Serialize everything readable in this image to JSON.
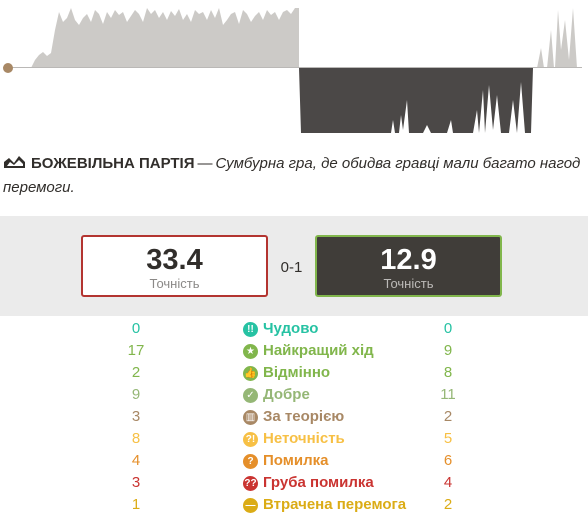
{
  "summary": {
    "icon": "graph-up-icon",
    "title": "БОЖЕВІЛЬНА ПАРТІЯ",
    "separator": "—",
    "description": "Сумбурна гра, де обидва гравці мали багато нагод перемоги."
  },
  "accuracy": {
    "white": {
      "value": "33.4",
      "label": "Точність",
      "border_color": "#b33430"
    },
    "black": {
      "value": "12.9",
      "label": "Точність",
      "border_color": "#81b64c"
    },
    "result": "0-1"
  },
  "classifications": [
    {
      "key": "brilliant",
      "label": "Чудово",
      "white": "0",
      "black": "0",
      "color": "#26c2a3",
      "icon": "double-exclamation-icon",
      "glyph": "!!"
    },
    {
      "key": "best",
      "label": "Найкращий хід",
      "white": "17",
      "black": "9",
      "color": "#81b64c",
      "icon": "star-icon",
      "glyph": "★"
    },
    {
      "key": "excellent",
      "label": "Відмінно",
      "white": "2",
      "black": "8",
      "color": "#81b64c",
      "icon": "thumbs-up-icon",
      "glyph": "👍"
    },
    {
      "key": "good",
      "label": "Добре",
      "white": "9",
      "black": "11",
      "color": "#95b776",
      "icon": "check-icon",
      "glyph": "✓"
    },
    {
      "key": "book",
      "label": "За теорією",
      "white": "3",
      "black": "2",
      "color": "#a88865",
      "icon": "book-icon",
      "glyph": "▥"
    },
    {
      "key": "inaccuracy",
      "label": "Неточність",
      "white": "8",
      "black": "5",
      "color": "#f7c045",
      "icon": "question-exclamation-icon",
      "glyph": "?!"
    },
    {
      "key": "mistake",
      "label": "Помилка",
      "white": "4",
      "black": "6",
      "color": "#e58f2a",
      "icon": "question-icon",
      "glyph": "?"
    },
    {
      "key": "blunder",
      "label": "Груба помилка",
      "white": "3",
      "black": "4",
      "color": "#ca3431",
      "icon": "double-question-icon",
      "glyph": "??"
    },
    {
      "key": "missed_win",
      "label": "Втрачена перемога",
      "white": "1",
      "black": "2",
      "color": "#dbac16",
      "icon": "minus-circle-icon",
      "glyph": "—"
    }
  ],
  "graph": {
    "white_color": "#cccac7",
    "black_color": "#4b4847",
    "marker_color": "#a88865",
    "icon": "evaluation-graph"
  }
}
